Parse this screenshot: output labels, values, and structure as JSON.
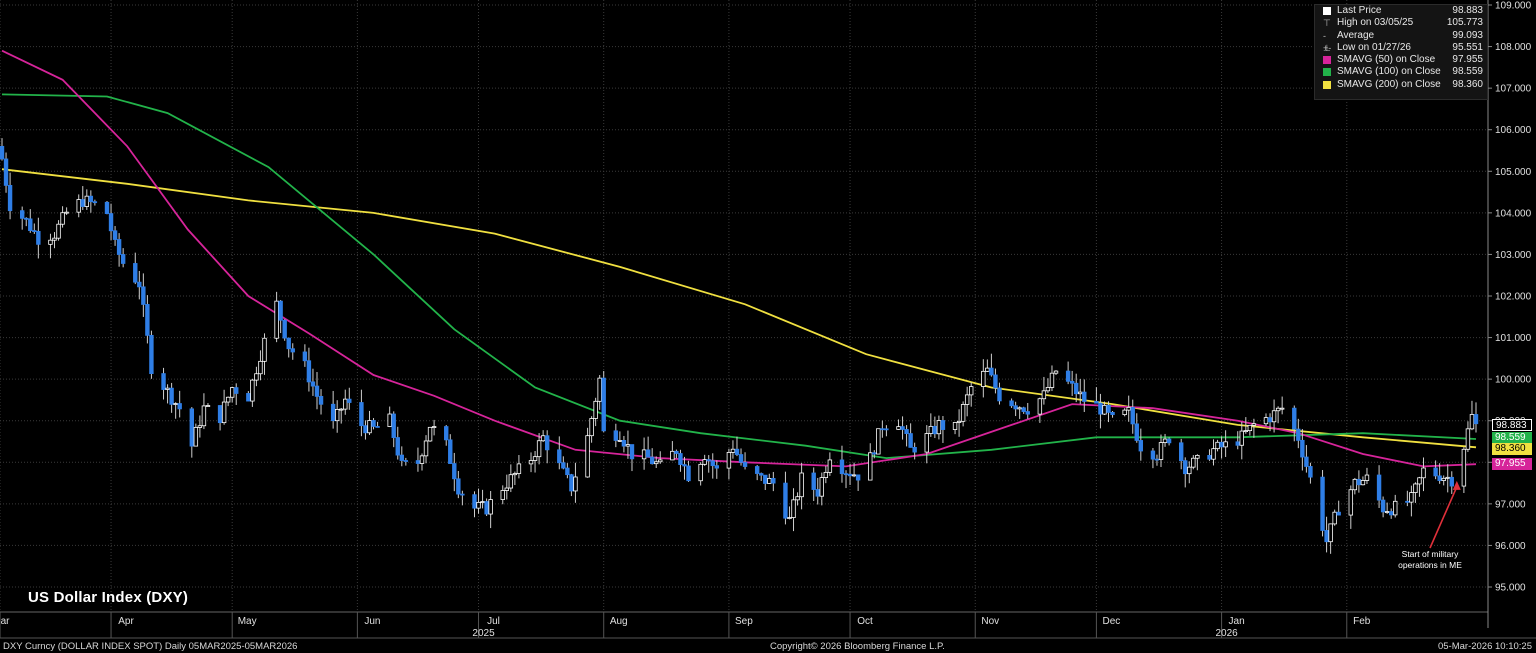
{
  "title": "US Dollar Index (DXY)",
  "footer": {
    "left": "DXY Curncy (DOLLAR INDEX SPOT) Daily 05MAR2025-05MAR2026",
    "center": "Copyright© 2026 Bloomberg Finance L.P.",
    "right": "05-Mar-2026 10:10:25"
  },
  "legend": [
    {
      "label": "Last Price",
      "value": "98.883",
      "swatch": "#ffffff",
      "glyph": ""
    },
    {
      "label": "High on 03/05/25",
      "value": "105.773",
      "swatch": "",
      "glyph": "⊤"
    },
    {
      "label": "Average",
      "value": "99.093",
      "swatch": "",
      "glyph": "-+-"
    },
    {
      "label": "Low on 01/27/26",
      "value": "95.551",
      "swatch": "",
      "glyph": "⊥"
    },
    {
      "label": "SMAVG (50)  on Close",
      "value": "97.955",
      "swatch": "#d6249a",
      "glyph": ""
    },
    {
      "label": "SMAVG (100)  on Close",
      "value": "98.559",
      "swatch": "#22b34a",
      "glyph": ""
    },
    {
      "label": "SMAVG (200)  on Close",
      "value": "98.360",
      "swatch": "#f0e040",
      "glyph": ""
    }
  ],
  "price_tags": [
    {
      "value": "98.883",
      "bg": "#000000",
      "fg": "#ffffff",
      "border": "#ffffff"
    },
    {
      "value": "98.559",
      "bg": "#22b34a",
      "fg": "#ffffff",
      "border": ""
    },
    {
      "value": "98.360",
      "bg": "#f0e040",
      "fg": "#000000",
      "border": ""
    },
    {
      "value": "97.955",
      "bg": "#d6249a",
      "fg": "#ffffff",
      "border": ""
    }
  ],
  "annotation": "Start of military operations in ME",
  "chart_data": {
    "type": "candlestick",
    "title": "US Dollar Index (DXY)",
    "ylim": [
      94.6,
      109.0
    ],
    "y_ticks": [
      "95.000",
      "96.000",
      "97.000",
      "98.000",
      "99.000",
      "100.000",
      "101.000",
      "102.000",
      "103.000",
      "104.000",
      "105.000",
      "106.000",
      "107.000",
      "108.000",
      "109.000"
    ],
    "x_range": [
      "2025-03-05",
      "2026-03-05"
    ],
    "x_ticks": [
      {
        "label": "Mar",
        "date": "2025-03-01"
      },
      {
        "label": "Apr",
        "date": "2025-04-01"
      },
      {
        "label": "May",
        "date": "2025-05-01"
      },
      {
        "label": "Jun",
        "date": "2025-06-01"
      },
      {
        "label": "Jul",
        "date": "2025-07-01"
      },
      {
        "label": "Aug",
        "date": "2025-08-01"
      },
      {
        "label": "Sep",
        "date": "2025-09-01"
      },
      {
        "label": "Oct",
        "date": "2025-10-01"
      },
      {
        "label": "Nov",
        "date": "2025-11-01"
      },
      {
        "label": "Dec",
        "date": "2025-12-01"
      },
      {
        "label": "Jan",
        "date": "2026-01-01"
      },
      {
        "label": "Feb",
        "date": "2026-02-01"
      }
    ],
    "year_labels": [
      {
        "label": "2025",
        "date": "2025-07-01"
      },
      {
        "label": "2026",
        "date": "2026-01-01"
      }
    ],
    "grid": true,
    "legend_position": "top-right",
    "colors": {
      "up": "#ffffff",
      "down": "#2f7ee6",
      "sma50": "#d6249a",
      "sma100": "#22b34a",
      "sma200": "#f0e040"
    },
    "price_anchors": [
      [
        "2025-03-05",
        105.3
      ],
      [
        "2025-03-07",
        104.2
      ],
      [
        "2025-03-11",
        103.8
      ],
      [
        "2025-03-14",
        103.4
      ],
      [
        "2025-03-18",
        103.5
      ],
      [
        "2025-03-21",
        104.0
      ],
      [
        "2025-03-25",
        104.3
      ],
      [
        "2025-03-28",
        104.2
      ],
      [
        "2025-03-31",
        104.0
      ],
      [
        "2025-04-02",
        103.2
      ],
      [
        "2025-04-04",
        102.8
      ],
      [
        "2025-04-08",
        102.3
      ],
      [
        "2025-04-11",
        100.3
      ],
      [
        "2025-04-15",
        99.7
      ],
      [
        "2025-04-18",
        99.3
      ],
      [
        "2025-04-21",
        98.4
      ],
      [
        "2025-04-24",
        99.3
      ],
      [
        "2025-04-28",
        99.1
      ],
      [
        "2025-05-01",
        99.8
      ],
      [
        "2025-05-05",
        99.6
      ],
      [
        "2025-05-08",
        100.6
      ],
      [
        "2025-05-12",
        101.8
      ],
      [
        "2025-05-15",
        100.8
      ],
      [
        "2025-05-19",
        100.3
      ],
      [
        "2025-05-22",
        99.6
      ],
      [
        "2025-05-26",
        98.9
      ],
      [
        "2025-05-29",
        99.5
      ],
      [
        "2025-06-02",
        98.9
      ],
      [
        "2025-06-05",
        98.8
      ],
      [
        "2025-06-09",
        99.0
      ],
      [
        "2025-06-12",
        97.9
      ],
      [
        "2025-06-16",
        98.0
      ],
      [
        "2025-06-19",
        98.9
      ],
      [
        "2025-06-23",
        98.4
      ],
      [
        "2025-06-26",
        97.4
      ],
      [
        "2025-06-30",
        96.9
      ],
      [
        "2025-07-03",
        96.9
      ],
      [
        "2025-07-07",
        97.4
      ],
      [
        "2025-07-10",
        97.7
      ],
      [
        "2025-07-14",
        98.1
      ],
      [
        "2025-07-17",
        98.6
      ],
      [
        "2025-07-21",
        97.9
      ],
      [
        "2025-07-24",
        97.4
      ],
      [
        "2025-07-28",
        98.6
      ],
      [
        "2025-07-31",
        100.0
      ],
      [
        "2025-08-01",
        98.7
      ],
      [
        "2025-08-05",
        98.7
      ],
      [
        "2025-08-08",
        98.2
      ],
      [
        "2025-08-12",
        98.1
      ],
      [
        "2025-08-15",
        97.9
      ],
      [
        "2025-08-19",
        98.3
      ],
      [
        "2025-08-22",
        97.7
      ],
      [
        "2025-08-26",
        98.2
      ],
      [
        "2025-08-29",
        97.8
      ],
      [
        "2025-09-02",
        98.4
      ],
      [
        "2025-09-05",
        97.8
      ],
      [
        "2025-09-09",
        97.6
      ],
      [
        "2025-09-12",
        97.5
      ],
      [
        "2025-09-16",
        96.6
      ],
      [
        "2025-09-19",
        97.6
      ],
      [
        "2025-09-23",
        97.3
      ],
      [
        "2025-09-26",
        98.2
      ],
      [
        "2025-09-30",
        97.8
      ],
      [
        "2025-10-03",
        97.7
      ],
      [
        "2025-10-06",
        98.1
      ],
      [
        "2025-10-09",
        98.9
      ],
      [
        "2025-10-13",
        99.0
      ],
      [
        "2025-10-16",
        98.3
      ],
      [
        "2025-10-20",
        98.6
      ],
      [
        "2025-10-23",
        98.9
      ],
      [
        "2025-10-27",
        98.8
      ],
      [
        "2025-10-31",
        99.8
      ],
      [
        "2025-11-04",
        100.2
      ],
      [
        "2025-11-07",
        99.6
      ],
      [
        "2025-11-11",
        99.4
      ],
      [
        "2025-11-14",
        99.3
      ],
      [
        "2025-11-18",
        99.6
      ],
      [
        "2025-11-21",
        100.2
      ],
      [
        "2025-11-25",
        99.8
      ],
      [
        "2025-11-28",
        99.5
      ],
      [
        "2025-12-02",
        99.3
      ],
      [
        "2025-12-05",
        99.0
      ],
      [
        "2025-12-09",
        99.2
      ],
      [
        "2025-12-12",
        98.4
      ],
      [
        "2025-12-16",
        98.2
      ],
      [
        "2025-12-19",
        98.6
      ],
      [
        "2025-12-23",
        97.9
      ],
      [
        "2025-12-26",
        98.0
      ],
      [
        "2025-12-30",
        98.3
      ],
      [
        "2026-01-02",
        98.4
      ],
      [
        "2026-01-06",
        98.6
      ],
      [
        "2026-01-09",
        98.9
      ],
      [
        "2026-01-13",
        99.1
      ],
      [
        "2026-01-16",
        99.3
      ],
      [
        "2026-01-20",
        98.6
      ],
      [
        "2026-01-23",
        97.6
      ],
      [
        "2026-01-27",
        96.1
      ],
      [
        "2026-01-30",
        96.9
      ],
      [
        "2026-02-03",
        97.5
      ],
      [
        "2026-02-06",
        97.6
      ],
      [
        "2026-02-10",
        96.9
      ],
      [
        "2026-02-13",
        96.9
      ],
      [
        "2026-02-17",
        97.1
      ],
      [
        "2026-02-20",
        97.8
      ],
      [
        "2026-02-24",
        97.7
      ],
      [
        "2026-02-27",
        97.6
      ],
      [
        "2026-03-02",
        98.4
      ],
      [
        "2026-03-04",
        99.1
      ],
      [
        "2026-03-05",
        98.883
      ]
    ],
    "sma50": [
      [
        "2025-03-05",
        107.9
      ],
      [
        "2025-03-20",
        107.2
      ],
      [
        "2025-04-05",
        105.6
      ],
      [
        "2025-04-20",
        103.6
      ],
      [
        "2025-05-05",
        102.0
      ],
      [
        "2025-05-20",
        101.1
      ],
      [
        "2025-06-05",
        100.1
      ],
      [
        "2025-06-20",
        99.6
      ],
      [
        "2025-07-05",
        99.0
      ],
      [
        "2025-07-25",
        98.3
      ],
      [
        "2025-08-15",
        98.1
      ],
      [
        "2025-09-05",
        98.0
      ],
      [
        "2025-09-30",
        97.9
      ],
      [
        "2025-10-20",
        98.2
      ],
      [
        "2025-11-10",
        98.9
      ],
      [
        "2025-11-25",
        99.4
      ],
      [
        "2025-12-15",
        99.3
      ],
      [
        "2026-01-05",
        99.0
      ],
      [
        "2026-01-20",
        98.7
      ],
      [
        "2026-02-05",
        98.2
      ],
      [
        "2026-02-20",
        97.9
      ],
      [
        "2026-03-05",
        97.955
      ]
    ],
    "sma100": [
      [
        "2025-03-05",
        106.85
      ],
      [
        "2025-03-31",
        106.8
      ],
      [
        "2025-04-15",
        106.4
      ],
      [
        "2025-05-10",
        105.1
      ],
      [
        "2025-06-05",
        103.0
      ],
      [
        "2025-06-25",
        101.2
      ],
      [
        "2025-07-15",
        99.8
      ],
      [
        "2025-08-05",
        99.0
      ],
      [
        "2025-08-25",
        98.7
      ],
      [
        "2025-09-20",
        98.4
      ],
      [
        "2025-10-10",
        98.1
      ],
      [
        "2025-11-05",
        98.3
      ],
      [
        "2025-12-01",
        98.6
      ],
      [
        "2026-01-05",
        98.6
      ],
      [
        "2026-02-05",
        98.7
      ],
      [
        "2026-03-05",
        98.559
      ]
    ],
    "sma200": [
      [
        "2025-03-05",
        105.05
      ],
      [
        "2025-04-05",
        104.7
      ],
      [
        "2025-05-05",
        104.3
      ],
      [
        "2025-06-05",
        104.0
      ],
      [
        "2025-07-05",
        103.5
      ],
      [
        "2025-08-05",
        102.7
      ],
      [
        "2025-09-05",
        101.8
      ],
      [
        "2025-10-05",
        100.6
      ],
      [
        "2025-11-05",
        99.8
      ],
      [
        "2025-12-05",
        99.4
      ],
      [
        "2026-01-05",
        98.9
      ],
      [
        "2026-02-05",
        98.6
      ],
      [
        "2026-03-05",
        98.36
      ]
    ],
    "annotation": {
      "text": "Start of military operations in ME",
      "date": "2026-02-28",
      "value": 97.6
    }
  }
}
